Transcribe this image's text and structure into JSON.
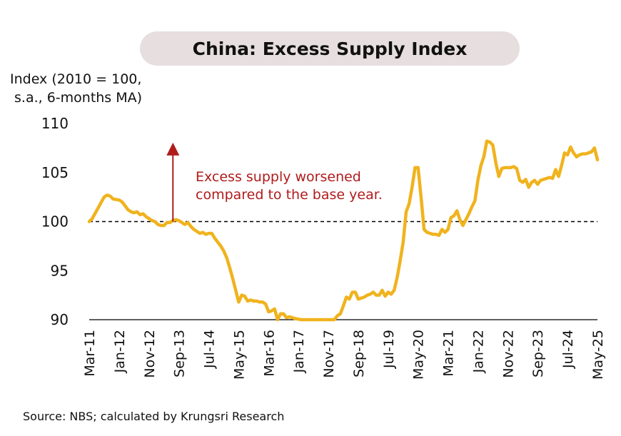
{
  "chart_data": {
    "type": "line",
    "title": "China: Excess Supply Index",
    "ylabel_line1": "Index (2010 = 100,",
    "ylabel_line2": "s.a., 6-months MA)",
    "source": "Source: NBS; calculated by Krungsri Research",
    "ylim": [
      90,
      110
    ],
    "yticks": [
      "110",
      "105",
      "100",
      "95",
      "90"
    ],
    "ytick_values": [
      110,
      105,
      100,
      95,
      90
    ],
    "xlim": [
      "2011-03",
      "2025-05"
    ],
    "xtick_labels": [
      "Mar-11",
      "Jan-12",
      "Nov-12",
      "Sep-13",
      "Jul-14",
      "May-15",
      "Mar-16",
      "Jan-17",
      "Nov-17",
      "Sep-18",
      "Jul-19",
      "May-20",
      "Mar-21",
      "Jan-22",
      "Nov-22",
      "Sep-23",
      "Jul-24",
      "May-25"
    ],
    "xtick_dates": [
      "2011-03",
      "2012-01",
      "2012-11",
      "2013-09",
      "2014-07",
      "2015-05",
      "2016-03",
      "2017-01",
      "2017-11",
      "2018-09",
      "2019-07",
      "2020-05",
      "2021-03",
      "2022-01",
      "2022-11",
      "2023-09",
      "2024-07",
      "2025-05"
    ],
    "reference_line": 100,
    "line_color": "#f0b31e",
    "annotation": {
      "line1": "Excess supply worsened",
      "line2": "compared to the base year.",
      "color": "#b01b1b",
      "arrow_date": "2013-07",
      "arrow_from": 100,
      "arrow_to": 107.9
    },
    "series": [
      {
        "values": [
          [
            "2011-03",
            100.0
          ],
          [
            "2011-04",
            100.3
          ],
          [
            "2011-06",
            101.4
          ],
          [
            "2011-08",
            102.5
          ],
          [
            "2011-09",
            102.7
          ],
          [
            "2011-10",
            102.6
          ],
          [
            "2011-11",
            102.3
          ],
          [
            "2012-01",
            102.2
          ],
          [
            "2012-02",
            102.0
          ],
          [
            "2012-03",
            101.6
          ],
          [
            "2012-04",
            101.2
          ],
          [
            "2012-05",
            101.0
          ],
          [
            "2012-06",
            100.9
          ],
          [
            "2012-07",
            101.0
          ],
          [
            "2012-08",
            100.7
          ],
          [
            "2012-09",
            100.8
          ],
          [
            "2012-10",
            100.5
          ],
          [
            "2012-11",
            100.3
          ],
          [
            "2012-12",
            100.1
          ],
          [
            "2013-01",
            100.0
          ],
          [
            "2013-02",
            99.7
          ],
          [
            "2013-03",
            99.6
          ],
          [
            "2013-04",
            99.6
          ],
          [
            "2013-05",
            99.9
          ],
          [
            "2013-06",
            99.9
          ],
          [
            "2013-07",
            100.1
          ],
          [
            "2013-08",
            100.2
          ],
          [
            "2013-09",
            100.1
          ],
          [
            "2013-10",
            99.9
          ],
          [
            "2013-11",
            99.7
          ],
          [
            "2013-12",
            99.9
          ],
          [
            "2014-01",
            99.5
          ],
          [
            "2014-02",
            99.2
          ],
          [
            "2014-03",
            99.0
          ],
          [
            "2014-04",
            98.8
          ],
          [
            "2014-05",
            98.9
          ],
          [
            "2014-06",
            98.7
          ],
          [
            "2014-07",
            98.8
          ],
          [
            "2014-08",
            98.8
          ],
          [
            "2014-09",
            98.3
          ],
          [
            "2014-10",
            97.9
          ],
          [
            "2014-11",
            97.5
          ],
          [
            "2014-12",
            97.0
          ],
          [
            "2015-01",
            96.3
          ],
          [
            "2015-02",
            95.3
          ],
          [
            "2015-03",
            94.2
          ],
          [
            "2015-04",
            93.0
          ],
          [
            "2015-05",
            91.8
          ],
          [
            "2015-06",
            92.5
          ],
          [
            "2015-07",
            92.4
          ],
          [
            "2015-08",
            91.9
          ],
          [
            "2015-09",
            92.0
          ],
          [
            "2015-10",
            91.9
          ],
          [
            "2015-11",
            91.9
          ],
          [
            "2015-12",
            91.8
          ],
          [
            "2016-01",
            91.8
          ],
          [
            "2016-02",
            91.6
          ],
          [
            "2016-03",
            90.8
          ],
          [
            "2016-04",
            90.9
          ],
          [
            "2016-05",
            91.1
          ],
          [
            "2016-06",
            90.0
          ],
          [
            "2016-07",
            90.6
          ],
          [
            "2016-08",
            90.6
          ],
          [
            "2016-09",
            90.2
          ],
          [
            "2016-10",
            90.3
          ],
          [
            "2016-11",
            90.2
          ],
          [
            "2016-12",
            90.1
          ],
          [
            "2017-01",
            90.05
          ],
          [
            "2017-02",
            90.0
          ],
          [
            "2017-03",
            90.0
          ],
          [
            "2017-04",
            90.0
          ],
          [
            "2017-05",
            90.0
          ],
          [
            "2017-06",
            90.0
          ],
          [
            "2017-07",
            90.0
          ],
          [
            "2017-08",
            90.0
          ],
          [
            "2017-09",
            90.0
          ],
          [
            "2017-10",
            90.0
          ],
          [
            "2017-11",
            90.0
          ],
          [
            "2017-12",
            90.0
          ],
          [
            "2018-01",
            90.0
          ],
          [
            "2018-02",
            90.4
          ],
          [
            "2018-03",
            90.6
          ],
          [
            "2018-04",
            91.4
          ],
          [
            "2018-05",
            92.3
          ],
          [
            "2018-06",
            92.1
          ],
          [
            "2018-07",
            92.8
          ],
          [
            "2018-08",
            92.8
          ],
          [
            "2018-09",
            92.1
          ],
          [
            "2018-10",
            92.2
          ],
          [
            "2018-11",
            92.3
          ],
          [
            "2018-12",
            92.5
          ],
          [
            "2019-01",
            92.6
          ],
          [
            "2019-02",
            92.8
          ],
          [
            "2019-03",
            92.5
          ],
          [
            "2019-04",
            92.5
          ],
          [
            "2019-05",
            93.0
          ],
          [
            "2019-06",
            92.4
          ],
          [
            "2019-07",
            92.8
          ],
          [
            "2019-08",
            92.6
          ],
          [
            "2019-09",
            93.0
          ],
          [
            "2019-10",
            94.3
          ],
          [
            "2019-11",
            96.0
          ],
          [
            "2019-12",
            97.9
          ],
          [
            "2020-01",
            101.0
          ],
          [
            "2020-02",
            101.8
          ],
          [
            "2020-03",
            103.5
          ],
          [
            "2020-04",
            105.5
          ],
          [
            "2020-05",
            105.5
          ],
          [
            "2020-06",
            102.5
          ],
          [
            "2020-07",
            99.2
          ],
          [
            "2020-08",
            98.9
          ],
          [
            "2020-09",
            98.8
          ],
          [
            "2020-10",
            98.7
          ],
          [
            "2020-11",
            98.7
          ],
          [
            "2020-12",
            98.6
          ],
          [
            "2021-01",
            99.2
          ],
          [
            "2021-02",
            98.9
          ],
          [
            "2021-03",
            99.2
          ],
          [
            "2021-04",
            100.4
          ],
          [
            "2021-05",
            100.6
          ],
          [
            "2021-06",
            101.1
          ],
          [
            "2021-07",
            100.2
          ],
          [
            "2021-08",
            99.6
          ],
          [
            "2021-09",
            100.2
          ],
          [
            "2021-10",
            100.8
          ],
          [
            "2021-11",
            101.5
          ],
          [
            "2021-12",
            102.1
          ],
          [
            "2022-01",
            104.2
          ],
          [
            "2022-02",
            105.7
          ],
          [
            "2022-03",
            106.6
          ],
          [
            "2022-04",
            108.2
          ],
          [
            "2022-05",
            108.1
          ],
          [
            "2022-06",
            107.8
          ],
          [
            "2022-07",
            106.0
          ],
          [
            "2022-08",
            104.6
          ],
          [
            "2022-09",
            105.4
          ],
          [
            "2022-10",
            105.5
          ],
          [
            "2022-11",
            105.5
          ],
          [
            "2022-12",
            105.5
          ],
          [
            "2023-01",
            105.6
          ],
          [
            "2023-02",
            105.4
          ],
          [
            "2023-03",
            104.2
          ],
          [
            "2023-04",
            104.0
          ],
          [
            "2023-05",
            104.3
          ],
          [
            "2023-06",
            103.5
          ],
          [
            "2023-07",
            104.0
          ],
          [
            "2023-08",
            104.2
          ],
          [
            "2023-09",
            103.8
          ],
          [
            "2023-10",
            104.2
          ],
          [
            "2023-11",
            104.3
          ],
          [
            "2023-12",
            104.4
          ],
          [
            "2024-01",
            104.5
          ],
          [
            "2024-02",
            104.4
          ],
          [
            "2024-03",
            105.3
          ],
          [
            "2024-04",
            104.6
          ],
          [
            "2024-05",
            105.7
          ],
          [
            "2024-06",
            107.0
          ],
          [
            "2024-07",
            106.8
          ],
          [
            "2024-08",
            107.6
          ],
          [
            "2024-09",
            107.0
          ],
          [
            "2024-10",
            106.6
          ],
          [
            "2024-11",
            106.8
          ],
          [
            "2024-12",
            106.9
          ],
          [
            "2025-01",
            106.9
          ],
          [
            "2025-02",
            107.0
          ],
          [
            "2025-03",
            107.1
          ],
          [
            "2025-04",
            107.5
          ],
          [
            "2025-05",
            106.3
          ]
        ]
      }
    ]
  }
}
